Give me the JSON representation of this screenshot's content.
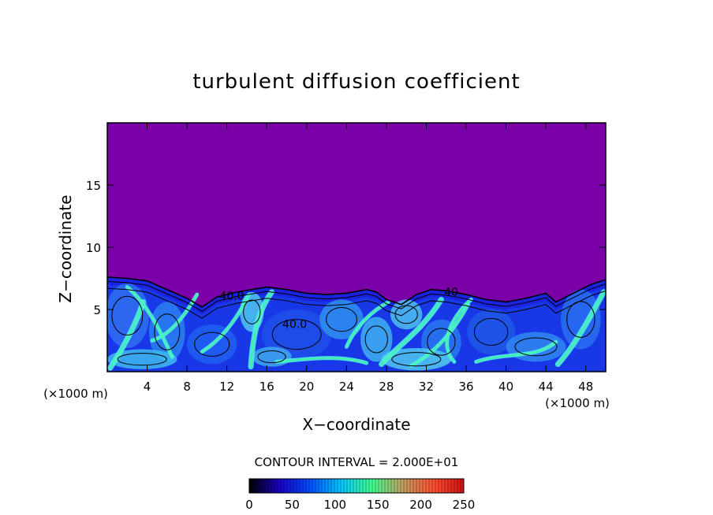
{
  "chart_data": {
    "type": "heatmap",
    "title": "turbulent diffusion coefficient",
    "xlabel": "X−coordinate",
    "ylabel": "Z−coordinate",
    "x_unit": "(×1000 m)",
    "x_unit_right": "(×1000 m)",
    "xlim": [
      0,
      50
    ],
    "ylim": [
      0,
      20
    ],
    "x_ticks": [
      4,
      8,
      12,
      16,
      20,
      24,
      28,
      32,
      36,
      40,
      44,
      48
    ],
    "y_ticks": [
      5,
      10,
      15
    ],
    "contour_interval_label": "CONTOUR INTERVAL = 2.000E+01",
    "contour_labels": [
      {
        "text": "40.0",
        "x": 12.5,
        "z": 5.8
      },
      {
        "text": "40.0",
        "x": 18.8,
        "z": 3.5
      },
      {
        "text": "40",
        "x": 34.5,
        "z": 6.1
      }
    ],
    "boundary_layer_top": [
      [
        0,
        7.6
      ],
      [
        2,
        7.5
      ],
      [
        4,
        7.3
      ],
      [
        6,
        6.6
      ],
      [
        8,
        5.9
      ],
      [
        9.5,
        5.2
      ],
      [
        11,
        6.0
      ],
      [
        13,
        6.4
      ],
      [
        14.5,
        6.6
      ],
      [
        16,
        6.8
      ],
      [
        18,
        6.6
      ],
      [
        20,
        6.3
      ],
      [
        22,
        6.2
      ],
      [
        24,
        6.3
      ],
      [
        26,
        6.6
      ],
      [
        27,
        6.4
      ],
      [
        28,
        5.8
      ],
      [
        29.5,
        5.4
      ],
      [
        31,
        6.2
      ],
      [
        32.5,
        6.6
      ],
      [
        34,
        6.5
      ],
      [
        36,
        6.2
      ],
      [
        38,
        5.8
      ],
      [
        40,
        5.6
      ],
      [
        42,
        5.9
      ],
      [
        44,
        6.3
      ],
      [
        45,
        5.6
      ],
      [
        47,
        6.4
      ],
      [
        48.5,
        7.0
      ],
      [
        50,
        7.4
      ]
    ],
    "colorbar": {
      "min": 0,
      "max": 250,
      "ticks": [
        0,
        50,
        100,
        150,
        200,
        250
      ],
      "colors": [
        "#000000",
        "#1a00c8",
        "#0050ff",
        "#00c8ff",
        "#40ff90",
        "#c0a060",
        "#ff5030",
        "#d01010"
      ]
    },
    "colors": {
      "background_field": "#7a00a8",
      "low": "#1a24e0",
      "mid": "#2a80f0",
      "high": "#50f0e0",
      "peak": "#40ff80",
      "contour": "#000000"
    }
  }
}
